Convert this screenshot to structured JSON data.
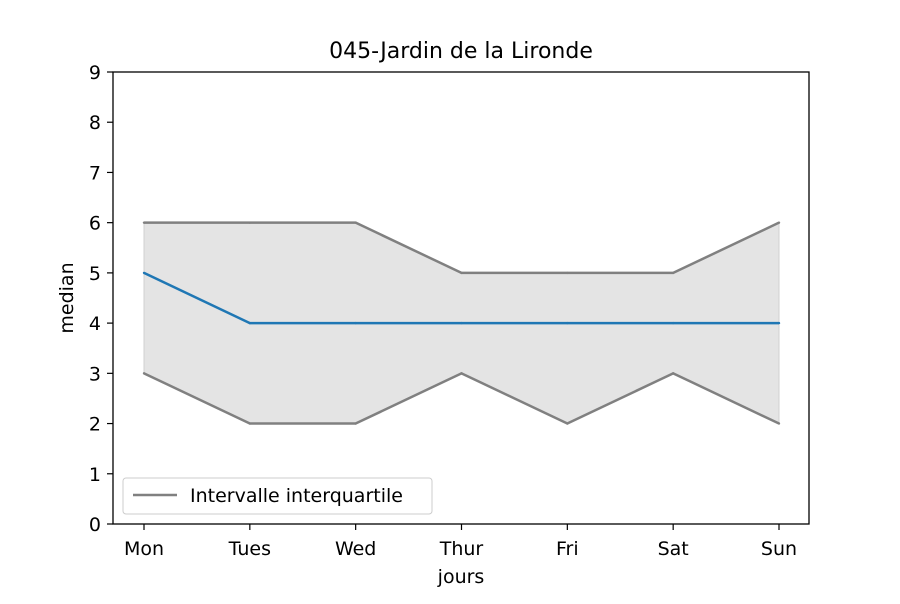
{
  "chart_data": {
    "type": "line",
    "title": "045-Jardin de la Lironde",
    "xlabel": "jours",
    "ylabel": "median",
    "categories": [
      "Mon",
      "Tues",
      "Wed",
      "Thur",
      "Fri",
      "Sat",
      "Sun"
    ],
    "ylim": [
      0,
      9
    ],
    "yticks": [
      "0",
      "1",
      "2",
      "3",
      "4",
      "5",
      "6",
      "7",
      "8",
      "9"
    ],
    "grid": false,
    "legend_position": "lower-left",
    "legend": [
      "Intervalle interquartile"
    ],
    "series": [
      {
        "role": "median",
        "values": [
          5,
          4,
          4,
          4,
          4,
          4,
          4
        ],
        "color": "#1f77b4"
      },
      {
        "role": "q3",
        "values": [
          6,
          6,
          6,
          5,
          5,
          5,
          6
        ],
        "color": "#808080"
      },
      {
        "role": "q1",
        "values": [
          3,
          2,
          2,
          3,
          2,
          3,
          2
        ],
        "color": "#808080"
      }
    ],
    "band_color": "#e4e4e4"
  }
}
